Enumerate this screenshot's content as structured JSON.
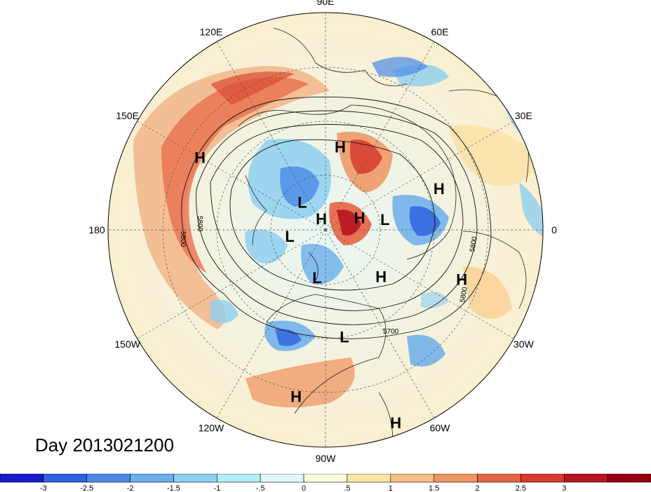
{
  "title": "Day 2013021200",
  "longitude_labels": [
    {
      "id": "90E",
      "text": "90E",
      "angle_deg": 90
    },
    {
      "id": "60E",
      "text": "60E",
      "angle_deg": 60
    },
    {
      "id": "30E",
      "text": "30E",
      "angle_deg": 30
    },
    {
      "id": "0",
      "text": "0",
      "angle_deg": 0
    },
    {
      "id": "30W",
      "text": "30W",
      "angle_deg": -30
    },
    {
      "id": "60W",
      "text": "60W",
      "angle_deg": -60
    },
    {
      "id": "90W",
      "text": "90W",
      "angle_deg": -90
    },
    {
      "id": "120W",
      "text": "120W",
      "angle_deg": -120
    },
    {
      "id": "150W",
      "text": "150W",
      "angle_deg": -150
    },
    {
      "id": "180",
      "text": "180",
      "angle_deg": 180
    },
    {
      "id": "150E",
      "text": "150E",
      "angle_deg": 150
    },
    {
      "id": "120E",
      "text": "120E",
      "angle_deg": 120
    }
  ],
  "pressure_centers": [
    {
      "type": "H",
      "lon": 150,
      "lat": 30
    },
    {
      "type": "H",
      "lon": 80,
      "lat": 55
    },
    {
      "type": "H",
      "lon": 20,
      "lat": 40
    },
    {
      "type": "H",
      "lon": 110,
      "lat": 85
    },
    {
      "type": "H",
      "lon": -40,
      "lat": 60
    },
    {
      "type": "H",
      "lon": -20,
      "lat": 30
    },
    {
      "type": "H",
      "lon": -100,
      "lat": 20
    },
    {
      "type": "H",
      "lon": -70,
      "lat": 5
    },
    {
      "type": "H",
      "lon": 20,
      "lat": 75
    },
    {
      "type": "L",
      "lon": 130,
      "lat": 75
    },
    {
      "type": "L",
      "lon": 10,
      "lat": 65
    },
    {
      "type": "L",
      "lon": -170,
      "lat": 75
    },
    {
      "type": "L",
      "lon": -100,
      "lat": 70
    },
    {
      "type": "L",
      "lon": -80,
      "lat": 45
    }
  ],
  "contour_labels": [
    {
      "text": "5800"
    },
    {
      "text": "5800"
    },
    {
      "text": "5800"
    },
    {
      "text": "5800"
    },
    {
      "text": "5700"
    }
  ],
  "colorbar": {
    "colors": [
      "#1a1acc",
      "#2e63e0",
      "#4a8ae6",
      "#6aaeea",
      "#8ecff0",
      "#b3ecf4",
      "#e0f8fa",
      "#fffbe0",
      "#fbe6a8",
      "#f5c083",
      "#ee9460",
      "#e56444",
      "#d83a2e",
      "#b8141e",
      "#96000f"
    ],
    "ticks": [
      "-3",
      "-2.5",
      "-2",
      "-1.5",
      "-1",
      "-.5",
      "0",
      ".5",
      "1",
      "1.5",
      "2",
      "2.5",
      "3"
    ]
  }
}
